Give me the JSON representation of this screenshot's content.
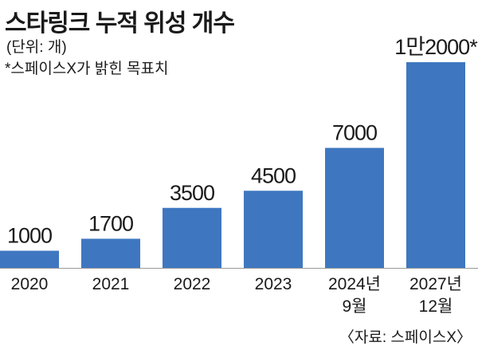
{
  "header": {
    "title": "스타링크 누적 위성 개수",
    "unit": "(단위: 개)",
    "note": "*스페이스X가 밝힌 목표치"
  },
  "footer": {
    "source": "〈자료: 스페이스X〉"
  },
  "colors": {
    "bar": "#3e77c0",
    "text": "#1a1a1a"
  },
  "chart_data": {
    "type": "bar",
    "title": "스타링크 누적 위성 개수",
    "xlabel": "",
    "ylabel": "",
    "ylim": [
      0,
      12000
    ],
    "grid": false,
    "categories": [
      [
        "2020"
      ],
      [
        "2021"
      ],
      [
        "2022"
      ],
      [
        "2023"
      ],
      [
        "2024년",
        "9월"
      ],
      [
        "2027년",
        "12월"
      ]
    ],
    "values": [
      1000,
      1700,
      3500,
      4500,
      7000,
      12000
    ],
    "value_labels": [
      "1000",
      "1700",
      "3500",
      "4500",
      "7000",
      "1만2000*"
    ]
  }
}
